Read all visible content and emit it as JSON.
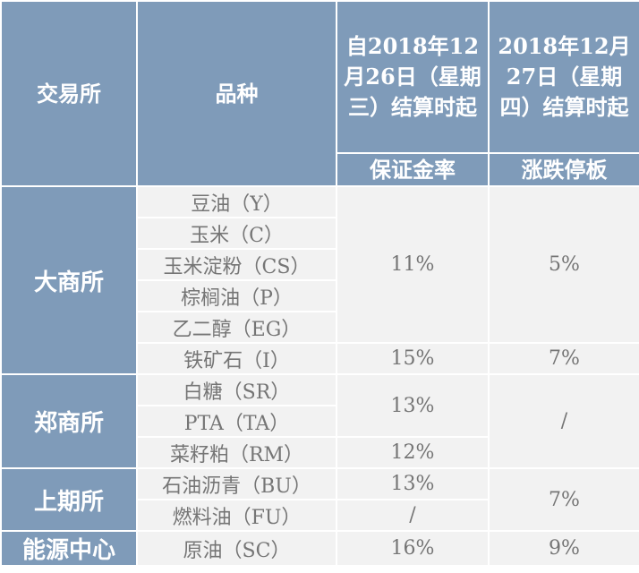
{
  "header": {
    "exchange": "交易所",
    "product": "品种",
    "col3": "自2018年12月26日（星期三）结算时起",
    "col4": "2018年12月27日（星期四）结算时起",
    "margin": "保证金率",
    "limit": "涨跌停板"
  },
  "exchanges": {
    "dce": "大商所",
    "czce": "郑商所",
    "shfe": "上期所",
    "ine": "能源中心"
  },
  "products": {
    "p1": "豆油（Y）",
    "p2": "玉米（C）",
    "p3": "玉米淀粉（CS）",
    "p4": "棕榈油（P）",
    "p5": "乙二醇（EG）",
    "p6": "铁矿石（I）",
    "p7": "白糖（SR）",
    "p8": "PTA（TA）",
    "p9": "菜籽粕（RM）",
    "p10": "石油沥青（BU）",
    "p11": "燃料油（FU）",
    "p12": "原油（SC）"
  },
  "margins": {
    "dce_group": "11%",
    "iron": "15%",
    "czce_group": "13%",
    "rm": "12%",
    "bu": "13%",
    "fu": "/",
    "sc": "16%"
  },
  "limits": {
    "dce_group": "5%",
    "iron": "7%",
    "czce": "/",
    "shfe": "7%",
    "sc": "9%"
  }
}
